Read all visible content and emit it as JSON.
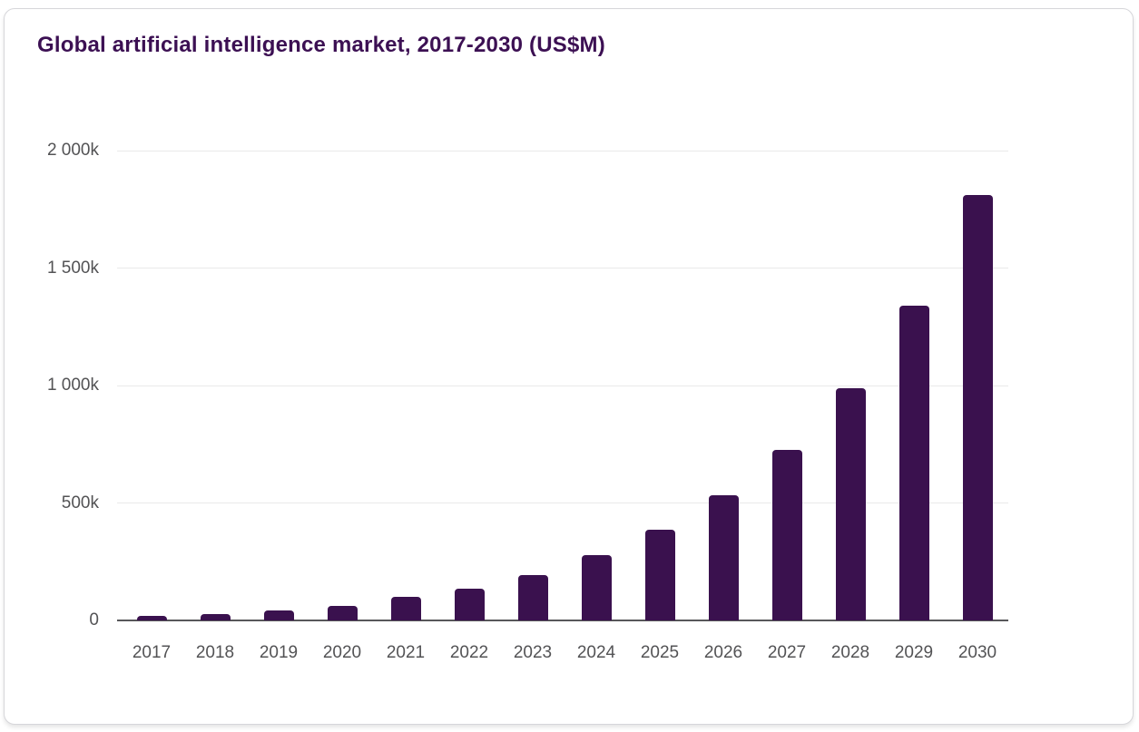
{
  "title": "Global artificial intelligence market, 2017-2030 (US$M)",
  "colors": {
    "bar": "#3a114e",
    "title": "#3c1053",
    "axis_label": "#535355",
    "gridline": "#e9e9e9",
    "axis_line": "#58585a",
    "card_border": "#d6d6da",
    "card_bg": "#ffffff"
  },
  "chart_data": {
    "type": "bar",
    "title": "Global artificial intelligence market, 2017-2030 (US$M)",
    "categories": [
      "2017",
      "2018",
      "2019",
      "2020",
      "2021",
      "2022",
      "2023",
      "2024",
      "2025",
      "2026",
      "2027",
      "2028",
      "2029",
      "2030"
    ],
    "values": [
      18,
      29,
      42,
      63,
      99,
      136,
      193,
      279,
      386,
      534,
      724,
      990,
      1338,
      1810
    ],
    "value_unit": "k (thousands of US$M)",
    "xlabel": "",
    "ylabel": "",
    "ylim": [
      0,
      2000
    ],
    "ytick_values": [
      2000,
      1500,
      1000,
      500,
      0
    ],
    "ytick_labels": [
      "2 000k",
      "1 500k",
      "1 000k",
      "500k",
      "0"
    ],
    "grid": true,
    "legend": false,
    "bar_color": "#3a114e"
  }
}
